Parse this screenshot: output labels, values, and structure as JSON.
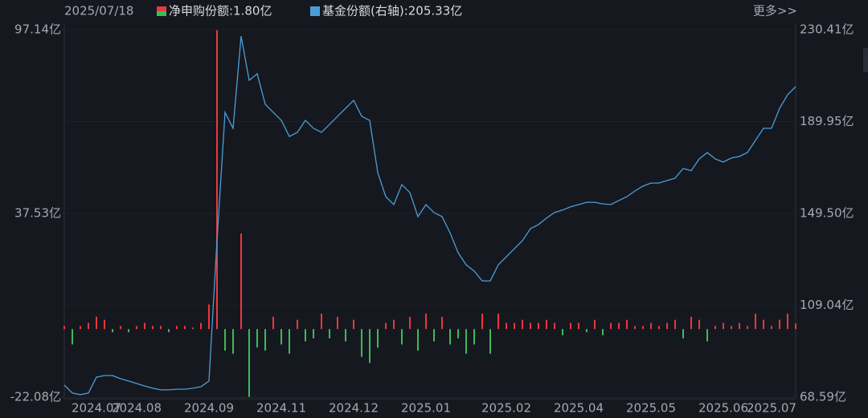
{
  "chart_data": {
    "type": "combo",
    "date": "2025/07/18",
    "more": "更多>>",
    "categories": [
      null,
      null,
      null,
      null,
      "2024.07",
      null,
      null,
      null,
      null,
      "2024.08",
      null,
      null,
      null,
      null,
      null,
      null,
      null,
      null,
      "2024.09",
      null,
      null,
      null,
      null,
      null,
      null,
      null,
      null,
      "2024.11",
      null,
      null,
      null,
      null,
      null,
      null,
      null,
      null,
      "2024.12",
      null,
      null,
      null,
      null,
      null,
      null,
      null,
      null,
      "2025.01",
      null,
      null,
      null,
      null,
      null,
      null,
      null,
      null,
      null,
      "2025.02",
      null,
      null,
      null,
      null,
      null,
      null,
      null,
      null,
      "2025.04",
      null,
      null,
      null,
      null,
      null,
      null,
      null,
      null,
      "2025.05",
      null,
      null,
      null,
      null,
      null,
      null,
      null,
      null,
      "2025.06",
      null,
      null,
      null,
      null,
      null,
      "2025.07",
      null,
      null,
      null
    ],
    "series": [
      {
        "name": "净申购份额:1.80亿",
        "type": "bar",
        "axis": "y",
        "colors": {
          "positive": "#e8393d",
          "negative": "#3dbb54"
        },
        "values": [
          1,
          -5,
          1,
          2,
          4,
          3,
          -1,
          1,
          -1,
          1,
          2,
          1,
          1,
          -1,
          1,
          1,
          0.5,
          2,
          8,
          97,
          -7,
          -8,
          31,
          -22,
          -6,
          -7,
          4,
          -5,
          -8,
          3,
          -4,
          -3,
          5,
          -3,
          4,
          -4,
          3,
          -9,
          -11,
          -6,
          2,
          3,
          -5,
          4,
          -7,
          5,
          -4,
          4,
          -5,
          -3,
          -8,
          -5,
          5,
          -8,
          5,
          2,
          2,
          3,
          2,
          2,
          3,
          2,
          -2,
          2,
          2,
          -1,
          3,
          -2,
          2,
          2,
          3,
          1,
          1,
          2,
          1,
          2,
          3,
          -3,
          4,
          3,
          -4,
          1,
          2,
          1,
          2,
          1,
          5,
          3,
          1,
          3,
          5,
          1.8
        ]
      },
      {
        "name": "基金份额(右轴):205.33亿",
        "type": "line",
        "axis": "y2",
        "color": "#4a9ed8",
        "values": [
          73.9,
          70.4,
          69.7,
          70.4,
          77.4,
          78.1,
          78.1,
          76.7,
          75.7,
          74.6,
          73.5,
          72.5,
          71.8,
          71.8,
          72.1,
          72.1,
          72.5,
          73.2,
          75.7,
          137.5,
          194.0,
          187.0,
          227.6,
          208.1,
          211.0,
          197.6,
          194.0,
          190.5,
          183.4,
          185.2,
          190.5,
          187.0,
          185.2,
          188.7,
          192.3,
          195.8,
          199.3,
          192.3,
          190.5,
          167.5,
          156.9,
          153.4,
          162.2,
          158.7,
          148.1,
          153.4,
          149.9,
          148.1,
          141.0,
          132.2,
          126.9,
          124.1,
          119.8,
          119.8,
          126.9,
          130.4,
          134.0,
          137.5,
          142.8,
          144.6,
          147.4,
          149.9,
          151.0,
          152.4,
          153.4,
          154.4,
          154.4,
          153.7,
          153.4,
          155.2,
          156.9,
          159.4,
          161.5,
          162.9,
          162.9,
          164.0,
          165.0,
          169.3,
          168.3,
          173.5,
          176.3,
          173.5,
          172.1,
          173.9,
          174.6,
          176.3,
          181.7,
          187.0,
          187.0,
          195.8,
          201.8,
          205.33
        ]
      }
    ],
    "ylim": [
      -22.08,
      97.14
    ],
    "yticks": [
      {
        "value": -22.08,
        "label": "-22.08亿"
      },
      {
        "value": 37.53,
        "label": "37.53亿"
      },
      {
        "value": 97.14,
        "label": "97.14亿"
      }
    ],
    "y2lim": [
      68.59,
      230.41
    ],
    "y2ticks": [
      {
        "value": 68.59,
        "label": "68.59亿"
      },
      {
        "value": 109.04,
        "label": "109.04亿"
      },
      {
        "value": 149.5,
        "label": "149.50亿"
      },
      {
        "value": 189.95,
        "label": "189.95亿"
      },
      {
        "value": 230.41,
        "label": "230.41亿"
      }
    ]
  }
}
